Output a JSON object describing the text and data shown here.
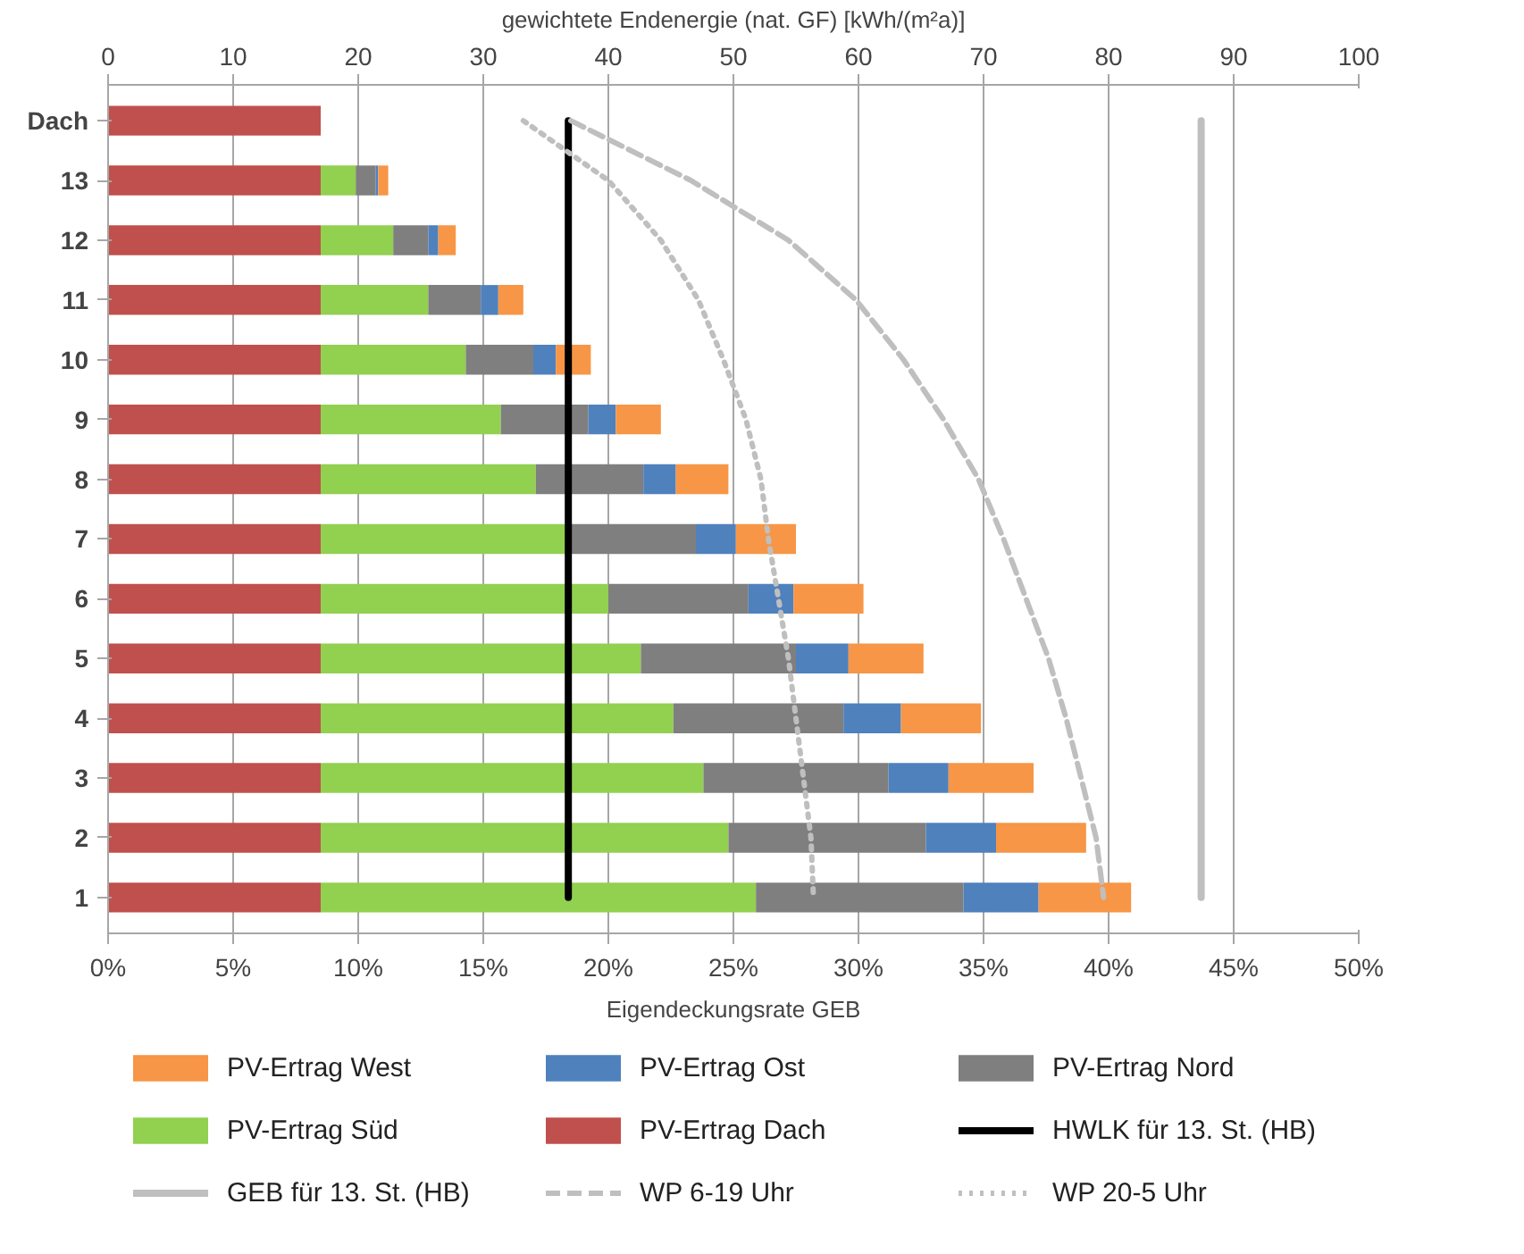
{
  "chart_data": {
    "type": "bar",
    "orientation": "horizontal",
    "stacked": true,
    "xlabel": "Eigendeckungsrate GEB",
    "x2label": "gewichtete Endenergie (nat. GF) [kWh/(m²a)]",
    "categories": [
      "Dach",
      "13",
      "12",
      "11",
      "10",
      "9",
      "8",
      "7",
      "6",
      "5",
      "4",
      "3",
      "2",
      "1"
    ],
    "xlim": [
      0,
      50
    ],
    "xticks": [
      {
        "value": 0,
        "label": "0%"
      },
      {
        "value": 5,
        "label": "5%"
      },
      {
        "value": 10,
        "label": "10%"
      },
      {
        "value": 15,
        "label": "15%"
      },
      {
        "value": 20,
        "label": "20%"
      },
      {
        "value": 25,
        "label": "25%"
      },
      {
        "value": 30,
        "label": "30%"
      },
      {
        "value": 35,
        "label": "35%"
      },
      {
        "value": 40,
        "label": "40%"
      },
      {
        "value": 45,
        "label": "45%"
      },
      {
        "value": 50,
        "label": "50%"
      }
    ],
    "x2lim": [
      0,
      100
    ],
    "x2ticks": [
      0,
      10,
      20,
      30,
      40,
      50,
      60,
      70,
      80,
      90,
      100
    ],
    "grid": "x",
    "legend": "bottom",
    "series": [
      {
        "name": "PV-Ertrag Dach",
        "color": "#c0504d",
        "values": [
          8.5,
          8.5,
          8.5,
          8.5,
          8.5,
          8.5,
          8.5,
          8.5,
          8.5,
          8.5,
          8.5,
          8.5,
          8.5,
          8.5
        ]
      },
      {
        "name": "PV-Ertrag Süd",
        "color": "#92d050",
        "values": [
          null,
          1.4,
          2.9,
          4.3,
          5.8,
          7.2,
          8.6,
          9.8,
          11.5,
          12.8,
          14.1,
          15.3,
          16.3,
          17.4
        ]
      },
      {
        "name": "PV-Ertrag Nord",
        "color": "#7f7f7f",
        "values": [
          null,
          0.8,
          1.4,
          2.1,
          2.7,
          3.5,
          4.3,
          5.2,
          5.6,
          6.2,
          6.8,
          7.4,
          7.9,
          8.3
        ]
      },
      {
        "name": "PV-Ertrag Ost",
        "color": "#4f81bd",
        "values": [
          null,
          0.1,
          0.4,
          0.7,
          0.9,
          1.1,
          1.3,
          1.6,
          1.8,
          2.1,
          2.3,
          2.4,
          2.8,
          3.0
        ]
      },
      {
        "name": "PV-Ertrag West",
        "color": "#f79646",
        "values": [
          null,
          0.4,
          0.7,
          1.0,
          1.4,
          1.8,
          2.1,
          2.4,
          2.8,
          3.0,
          3.2,
          3.4,
          3.6,
          3.7
        ]
      },
      {
        "name": "HWLK für 13. St. (HB)",
        "type": "line",
        "line_style": "solid",
        "color": "#000000",
        "values": [
          18.4,
          18.4,
          18.4,
          18.4,
          18.4,
          18.4,
          18.4,
          18.4,
          18.4,
          18.4,
          18.4,
          18.4,
          18.4,
          18.4
        ]
      },
      {
        "name": "GEB für 13. St. (HB)",
        "type": "line",
        "line_style": "solid",
        "color": "#bfbfbf",
        "values": [
          43.7,
          43.7,
          43.7,
          43.7,
          43.7,
          43.7,
          43.7,
          43.7,
          43.7,
          43.7,
          43.7,
          43.7,
          43.7,
          43.7
        ]
      },
      {
        "name": "WP 6-19 Uhr",
        "type": "line",
        "line_style": "dashed",
        "color": "#bfbfbf",
        "values": [
          18.5,
          23.3,
          27.2,
          29.9,
          31.8,
          33.4,
          34.8,
          35.8,
          36.7,
          37.6,
          38.3,
          38.9,
          39.5,
          39.8
        ]
      },
      {
        "name": "WP 20-5 Uhr",
        "type": "line",
        "line_style": "dotted",
        "color": "#bfbfbf",
        "values": [
          16.6,
          20.0,
          22.1,
          23.6,
          24.6,
          25.5,
          26.1,
          26.4,
          26.8,
          27.2,
          27.5,
          27.8,
          28.1,
          28.2
        ]
      }
    ]
  }
}
